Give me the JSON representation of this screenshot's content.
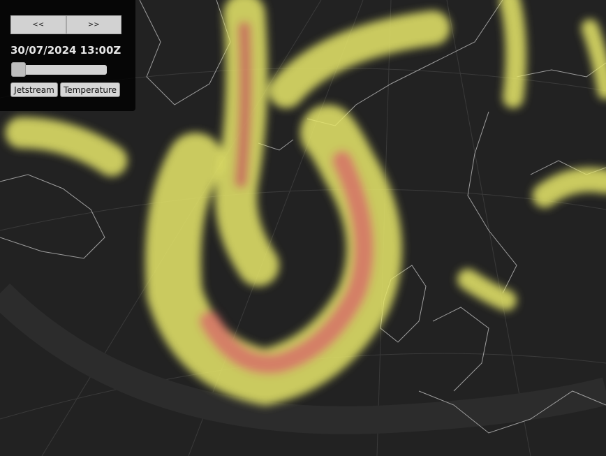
{
  "controls": {
    "prev_label": "<<",
    "next_label": ">>",
    "timestamp": "30/07/2024 13:00Z",
    "time_slider_position": 0.0,
    "layers": [
      "Jetstream",
      "Temperature"
    ]
  },
  "colors": {
    "background": "#222222",
    "coastline": "#bdbdbd",
    "jet_low": "#e8e86a",
    "jet_high": "#d9606a"
  }
}
